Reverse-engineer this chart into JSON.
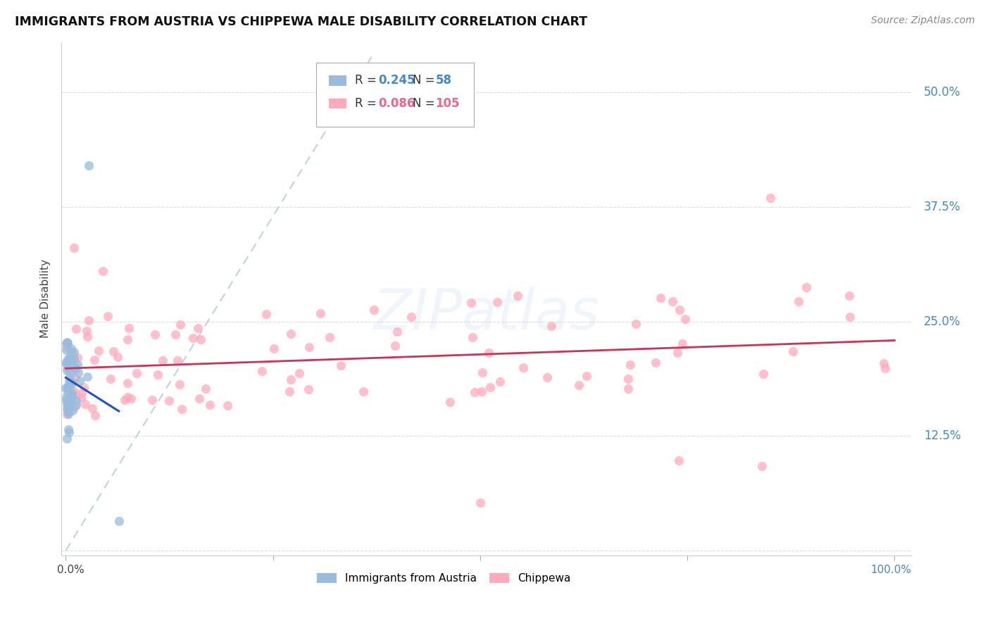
{
  "title": "IMMIGRANTS FROM AUSTRIA VS CHIPPEWA MALE DISABILITY CORRELATION CHART",
  "source": "Source: ZipAtlas.com",
  "ylabel": "Male Disability",
  "ytick_labels": [
    "50.0%",
    "37.5%",
    "25.0%",
    "12.5%"
  ],
  "ytick_values": [
    0.5,
    0.375,
    0.25,
    0.125
  ],
  "watermark": "ZIPatlas",
  "color_blue": "#99BBDD",
  "color_pink": "#FFAABB",
  "color_blue_text": "#4488CC",
  "color_pink_text": "#EE6688",
  "trendline_blue": "#2255BB",
  "trendline_pink": "#CC3355",
  "dashed_line_color": "#BBCCDD",
  "legend_items": [
    {
      "r": "0.245",
      "n": "58",
      "color": "#99BBDD",
      "text_color": "#4488CC"
    },
    {
      "r": "0.086",
      "n": "105",
      "color": "#FFAABB",
      "text_color": "#EE6688"
    }
  ],
  "bottom_legend": [
    "Immigrants from Austria",
    "Chippewa"
  ]
}
